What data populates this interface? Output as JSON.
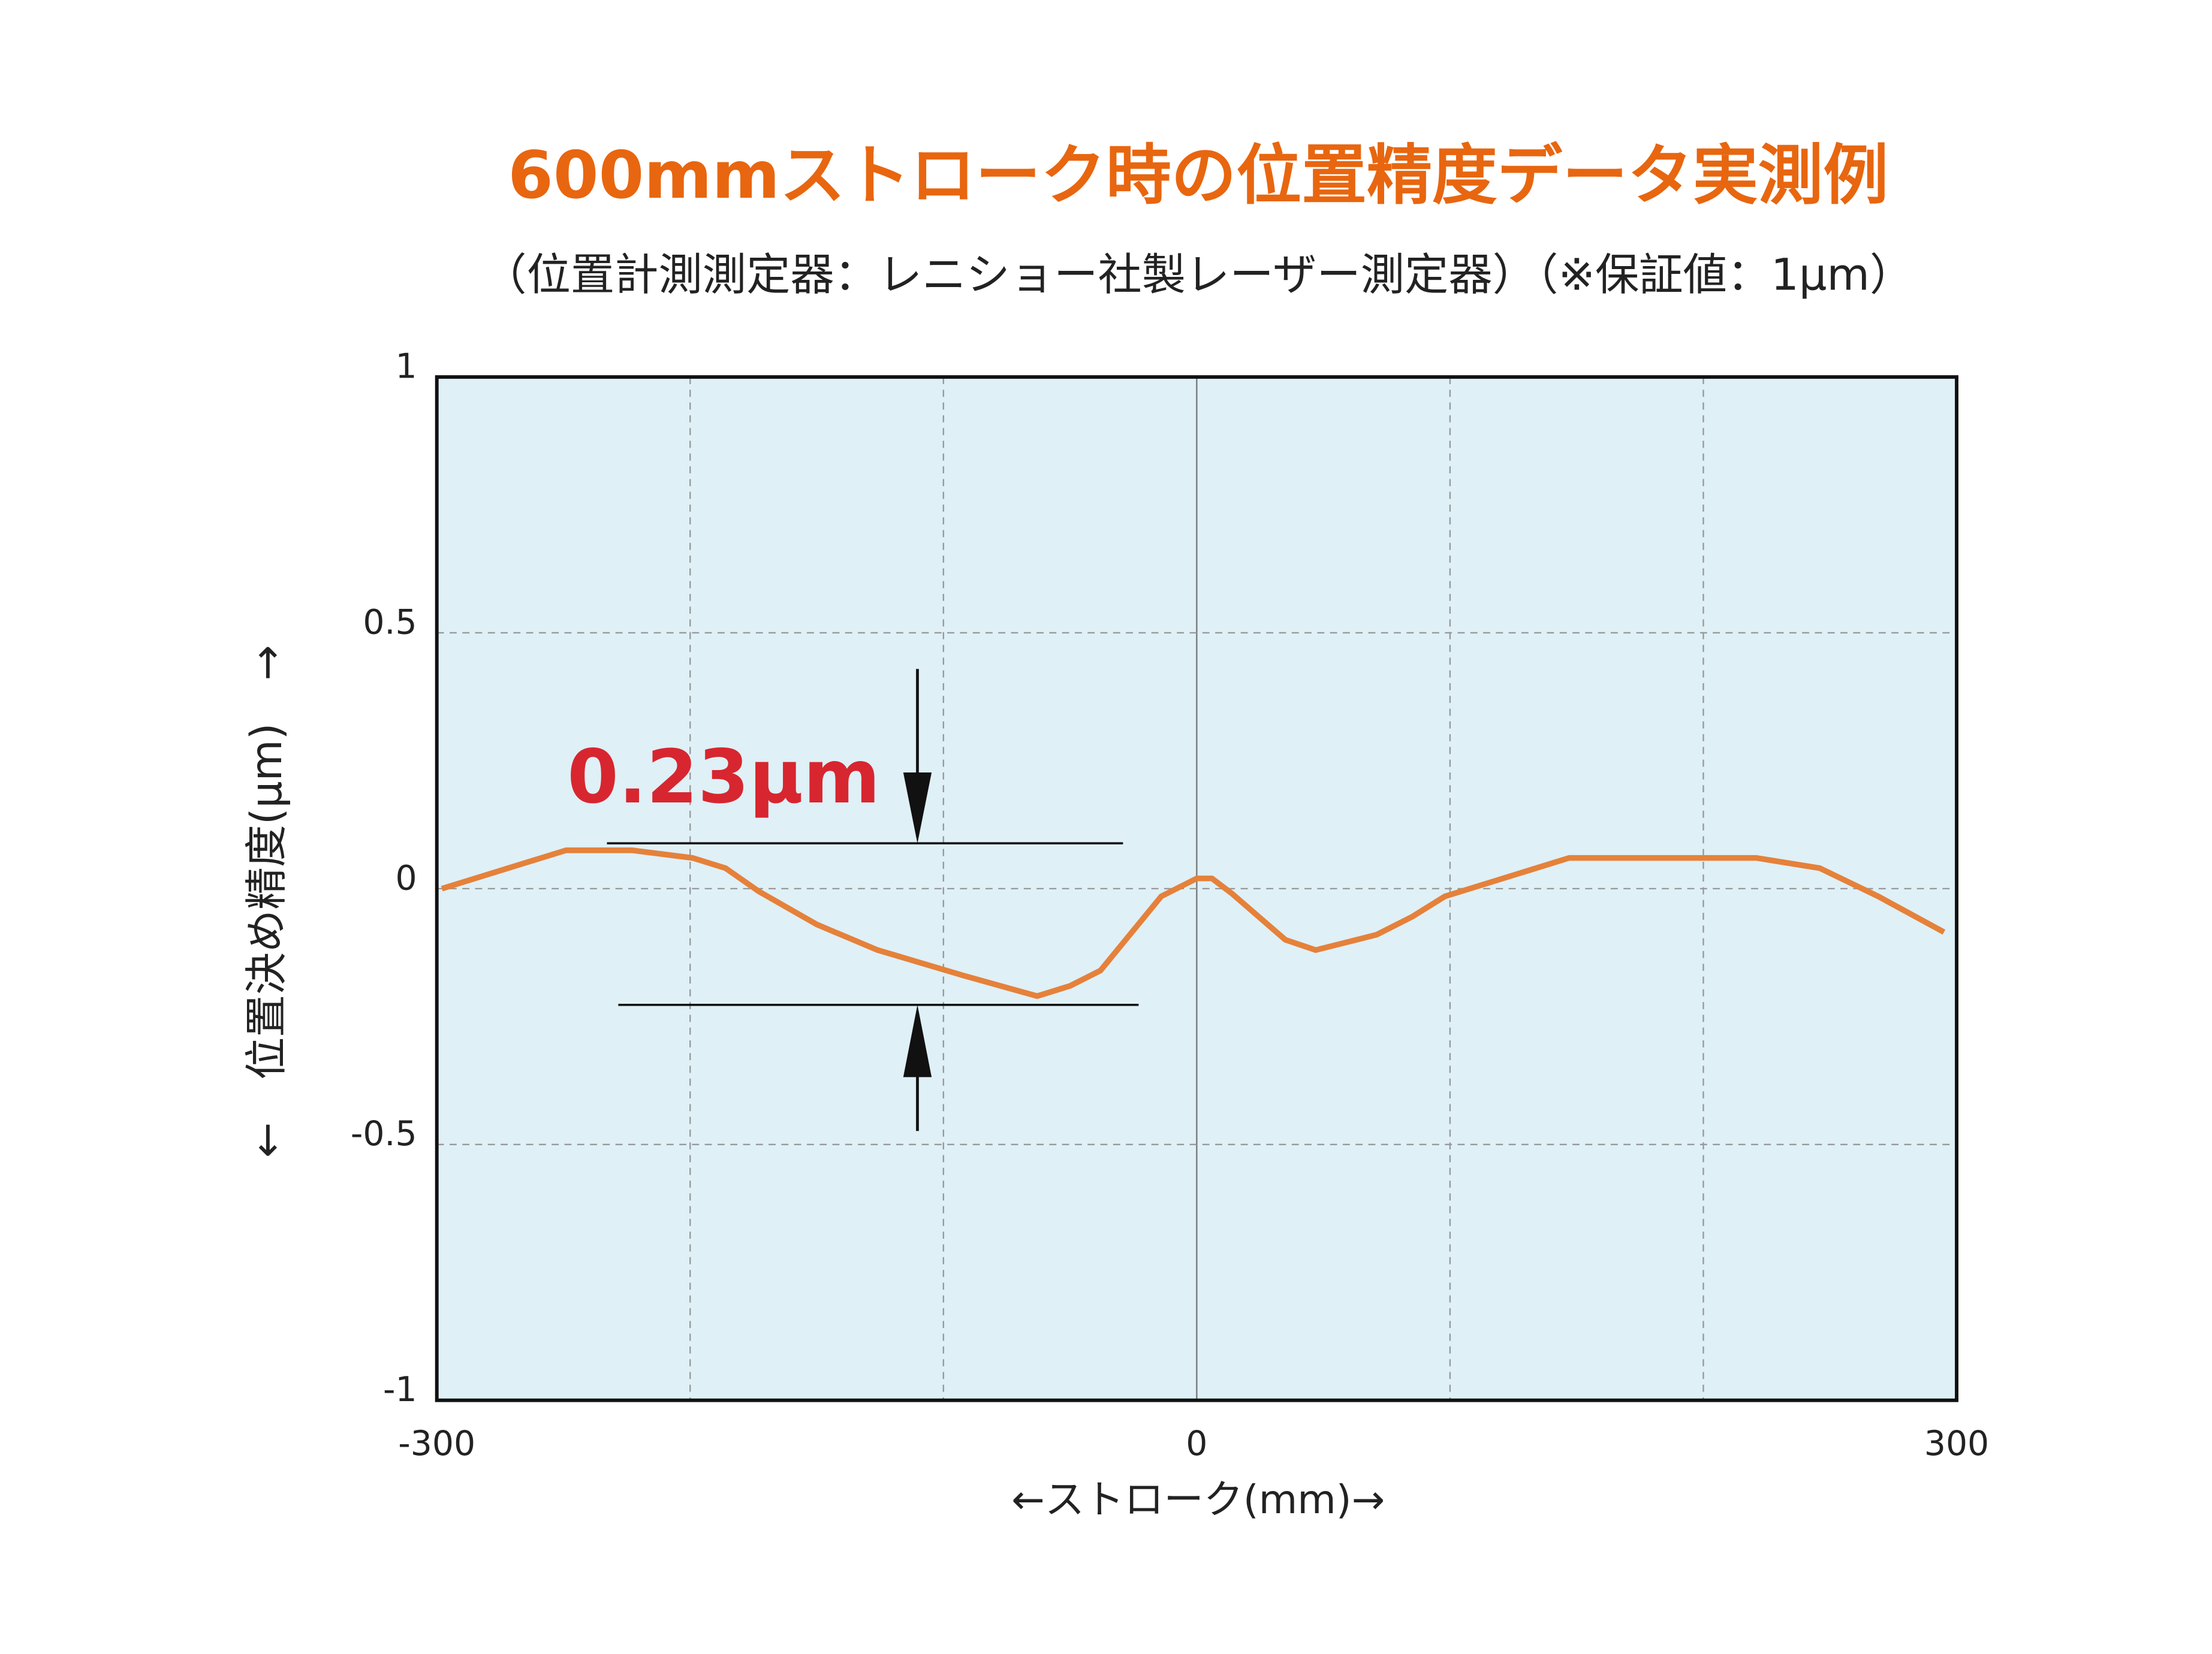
{
  "chart_data": {
    "type": "line",
    "title": "600mmストローク時の位置精度データ実測例",
    "subtitle": "（位置計測測定器：レニショー社製レーザー測定器）（※保証値：1μm）",
    "x_label": "←ストローク(mm)→",
    "y_label": "←　位置決め精度(μm)　→",
    "annotation": "0.23μm",
    "x": [
      -298,
      -249,
      -223,
      -199,
      -186,
      -173,
      -150,
      -126,
      -92,
      -63,
      -50,
      -38,
      -14,
      0,
      6,
      14,
      35,
      47,
      71,
      85,
      98,
      147,
      221,
      246,
      269,
      295
    ],
    "series": [
      {
        "color": "#e5813a",
        "values": [
          0.0,
          0.075,
          0.075,
          0.06,
          0.04,
          -0.005,
          -0.07,
          -0.12,
          -0.17,
          -0.21,
          -0.19,
          -0.16,
          -0.015,
          0.02,
          0.02,
          -0.01,
          -0.1,
          -0.12,
          -0.09,
          -0.055,
          -0.015,
          0.06,
          0.06,
          0.04,
          -0.015,
          -0.085
        ]
      }
    ],
    "xlim": [
      -300,
      300
    ],
    "xticks": [
      -300,
      0,
      300
    ],
    "x_grid_lines": [
      -200,
      -100,
      0,
      100,
      200
    ],
    "ylim": [
      -1,
      1
    ],
    "yticks": [
      1,
      0.5,
      0,
      -0.5,
      -1
    ],
    "grid": true,
    "plot_background": "#dff0f7"
  }
}
